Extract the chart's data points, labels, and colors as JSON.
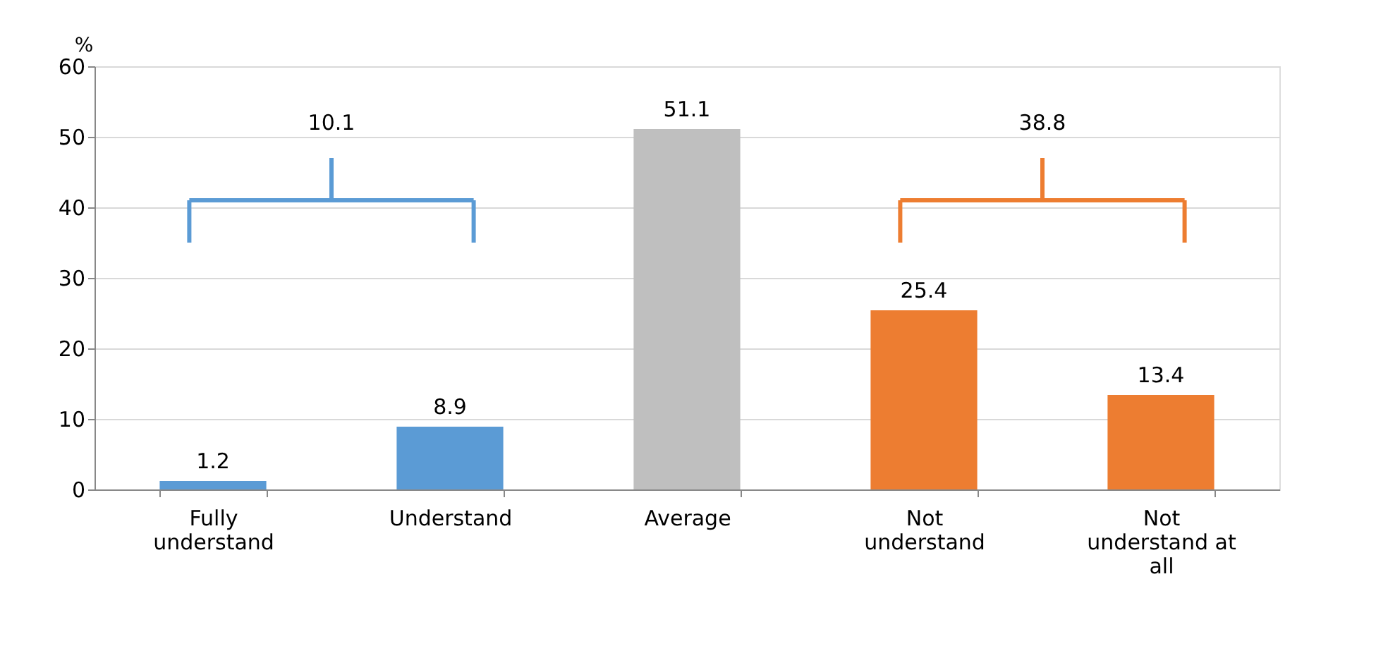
{
  "chart_data": {
    "type": "bar",
    "ylabel": "%",
    "categories": [
      "Fully understand",
      "Understand",
      "Average",
      "Not understand",
      "Not understand at all"
    ],
    "values": [
      1.2,
      8.9,
      51.1,
      25.4,
      13.4
    ],
    "colors": [
      "#5b9bd5",
      "#5b9bd5",
      "#bfbfbf",
      "#ed7d31",
      "#ed7d31"
    ],
    "ylim": [
      0,
      60
    ],
    "yticks": [
      0,
      10,
      20,
      30,
      40,
      50,
      60
    ],
    "grid": "y",
    "data_labels": true,
    "annotations": [
      "10.1",
      "38.8"
    ]
  }
}
